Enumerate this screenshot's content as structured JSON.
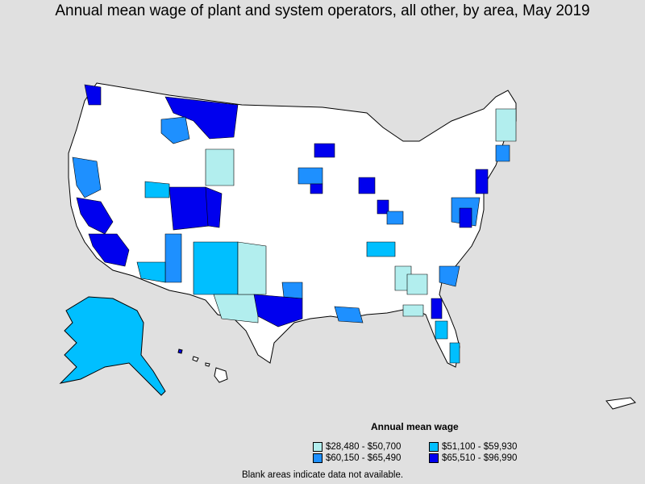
{
  "title": "Annual mean wage of plant and system operators, all other, by area, May 2019",
  "legend": {
    "title": "Annual mean wage",
    "items": [
      {
        "label": "$28,480 - $50,700",
        "color": "#b2eeee"
      },
      {
        "label": "$51,100 - $59,930",
        "color": "#00bfff"
      },
      {
        "label": "$60,150 - $65,490",
        "color": "#1e90ff"
      },
      {
        "label": "$65,510 - $96,990",
        "color": "#0000ee"
      }
    ]
  },
  "note": "Blank areas indicate data not available.",
  "colors": {
    "background": "#e0e0e0",
    "land": "#ffffff",
    "border": "#000000"
  }
}
